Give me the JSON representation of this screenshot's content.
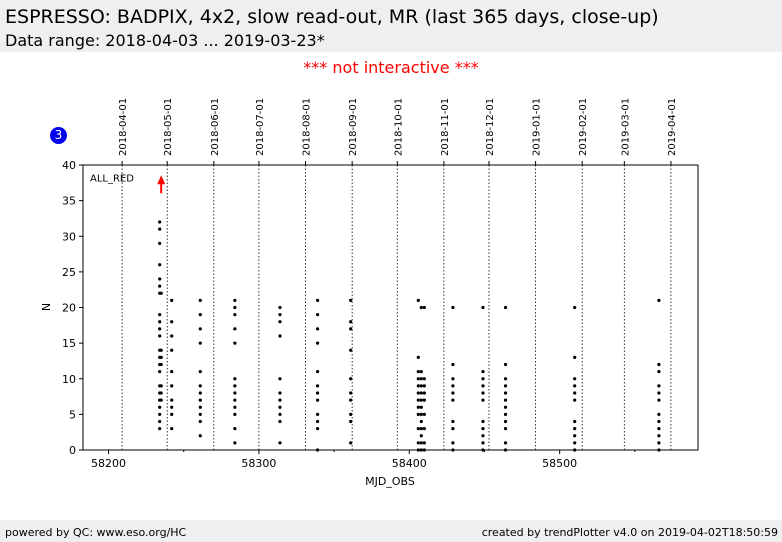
{
  "header": {
    "title": "ESPRESSO: BADPIX, 4x2, slow read-out, MR (last 365 days, close-up)",
    "subtitle": "Data range: 2018-04-03 ... 2019-03-23*"
  },
  "notice": "*** not interactive ***",
  "badge": "3",
  "footer": {
    "left": "powered by QC: www.eso.org/HC",
    "right": "created by trendPlotter v4.0 on 2019-04-02T18:50:59"
  },
  "chart_data": {
    "type": "scatter",
    "xlabel": "MJD_OBS",
    "ylabel": "N",
    "xlim": [
      58183,
      58592
    ],
    "ylim": [
      0,
      40
    ],
    "x_ticks": [
      58200,
      58300,
      58400,
      58500
    ],
    "y_ticks": [
      0,
      5,
      10,
      15,
      20,
      25,
      30,
      35,
      40
    ],
    "date_ticks": [
      {
        "mjd": 58209,
        "label": "2018-04-01"
      },
      {
        "mjd": 58239,
        "label": "2018-05-01"
      },
      {
        "mjd": 58270,
        "label": "2018-06-01"
      },
      {
        "mjd": 58300,
        "label": "2018-07-01"
      },
      {
        "mjd": 58331,
        "label": "2018-08-01"
      },
      {
        "mjd": 58362,
        "label": "2018-09-01"
      },
      {
        "mjd": 58392,
        "label": "2018-10-01"
      },
      {
        "mjd": 58423,
        "label": "2018-11-01"
      },
      {
        "mjd": 58453,
        "label": "2018-12-01"
      },
      {
        "mjd": 58484,
        "label": "2019-01-01"
      },
      {
        "mjd": 58515,
        "label": "2019-02-01"
      },
      {
        "mjd": 58543,
        "label": "2019-03-01"
      },
      {
        "mjd": 58574,
        "label": "2019-04-01"
      }
    ],
    "annotation": {
      "text": "ALL_RED",
      "x": 58235,
      "y": 38,
      "color": "#ff0000"
    },
    "marker_color": "#000000",
    "series": [
      {
        "points": [
          [
            58234,
            3
          ],
          [
            58234,
            4
          ],
          [
            58234,
            5
          ],
          [
            58234,
            6
          ],
          [
            58234,
            7
          ],
          [
            58234,
            8
          ],
          [
            58234,
            9
          ],
          [
            58234,
            11
          ],
          [
            58234,
            12
          ],
          [
            58234,
            13
          ],
          [
            58234,
            14
          ],
          [
            58234,
            16
          ],
          [
            58234,
            17
          ],
          [
            58234,
            18
          ],
          [
            58234,
            19
          ],
          [
            58234,
            22
          ],
          [
            58234,
            23
          ],
          [
            58234,
            24
          ],
          [
            58234,
            26
          ],
          [
            58234,
            29
          ],
          [
            58234,
            31
          ],
          [
            58234,
            32
          ],
          [
            58235,
            7
          ],
          [
            58235,
            8
          ],
          [
            58235,
            9
          ],
          [
            58235,
            12
          ],
          [
            58235,
            13
          ],
          [
            58235,
            14
          ],
          [
            58235,
            22
          ],
          [
            58242,
            3
          ],
          [
            58242,
            5
          ],
          [
            58242,
            6
          ],
          [
            58242,
            7
          ],
          [
            58242,
            9
          ],
          [
            58242,
            11
          ],
          [
            58242,
            14
          ],
          [
            58242,
            16
          ],
          [
            58242,
            18
          ],
          [
            58242,
            21
          ],
          [
            58261,
            2
          ],
          [
            58261,
            4
          ],
          [
            58261,
            5
          ],
          [
            58261,
            6
          ],
          [
            58261,
            7
          ],
          [
            58261,
            8
          ],
          [
            58261,
            9
          ],
          [
            58261,
            11
          ],
          [
            58261,
            15
          ],
          [
            58261,
            17
          ],
          [
            58261,
            19
          ],
          [
            58261,
            21
          ],
          [
            58284,
            1
          ],
          [
            58284,
            3
          ],
          [
            58284,
            5
          ],
          [
            58284,
            6
          ],
          [
            58284,
            7
          ],
          [
            58284,
            8
          ],
          [
            58284,
            9
          ],
          [
            58284,
            10
          ],
          [
            58284,
            15
          ],
          [
            58284,
            17
          ],
          [
            58284,
            19
          ],
          [
            58284,
            20
          ],
          [
            58284,
            21
          ],
          [
            58314,
            1
          ],
          [
            58314,
            4
          ],
          [
            58314,
            5
          ],
          [
            58314,
            6
          ],
          [
            58314,
            7
          ],
          [
            58314,
            8
          ],
          [
            58314,
            10
          ],
          [
            58314,
            16
          ],
          [
            58314,
            18
          ],
          [
            58314,
            19
          ],
          [
            58314,
            20
          ],
          [
            58339,
            0
          ],
          [
            58339,
            3
          ],
          [
            58339,
            4
          ],
          [
            58339,
            5
          ],
          [
            58339,
            7
          ],
          [
            58339,
            8
          ],
          [
            58339,
            9
          ],
          [
            58339,
            11
          ],
          [
            58339,
            15
          ],
          [
            58339,
            17
          ],
          [
            58339,
            19
          ],
          [
            58339,
            21
          ],
          [
            58361,
            1
          ],
          [
            58361,
            4
          ],
          [
            58361,
            5
          ],
          [
            58361,
            7
          ],
          [
            58361,
            8
          ],
          [
            58361,
            10
          ],
          [
            58361,
            14
          ],
          [
            58361,
            17
          ],
          [
            58361,
            18
          ],
          [
            58361,
            21
          ],
          [
            58406,
            0
          ],
          [
            58406,
            1
          ],
          [
            58406,
            3
          ],
          [
            58406,
            5
          ],
          [
            58406,
            6
          ],
          [
            58406,
            7
          ],
          [
            58406,
            8
          ],
          [
            58406,
            9
          ],
          [
            58406,
            10
          ],
          [
            58406,
            11
          ],
          [
            58406,
            13
          ],
          [
            58406,
            21
          ],
          [
            58408,
            0
          ],
          [
            58408,
            1
          ],
          [
            58408,
            2
          ],
          [
            58408,
            3
          ],
          [
            58408,
            4
          ],
          [
            58408,
            5
          ],
          [
            58408,
            6
          ],
          [
            58408,
            7
          ],
          [
            58408,
            8
          ],
          [
            58408,
            9
          ],
          [
            58408,
            10
          ],
          [
            58408,
            11
          ],
          [
            58408,
            20
          ],
          [
            58410,
            0
          ],
          [
            58410,
            1
          ],
          [
            58410,
            3
          ],
          [
            58410,
            5
          ],
          [
            58410,
            7
          ],
          [
            58410,
            8
          ],
          [
            58410,
            9
          ],
          [
            58410,
            10
          ],
          [
            58410,
            20
          ],
          [
            58429,
            0
          ],
          [
            58429,
            1
          ],
          [
            58429,
            3
          ],
          [
            58429,
            4
          ],
          [
            58429,
            7
          ],
          [
            58429,
            8
          ],
          [
            58429,
            9
          ],
          [
            58429,
            10
          ],
          [
            58429,
            12
          ],
          [
            58429,
            20
          ],
          [
            58449,
            0
          ],
          [
            58449,
            1
          ],
          [
            58449,
            2
          ],
          [
            58449,
            3
          ],
          [
            58449,
            4
          ],
          [
            58449,
            7
          ],
          [
            58449,
            8
          ],
          [
            58449,
            9
          ],
          [
            58449,
            10
          ],
          [
            58449,
            11
          ],
          [
            58449,
            20
          ],
          [
            58464,
            0
          ],
          [
            58464,
            1
          ],
          [
            58464,
            3
          ],
          [
            58464,
            4
          ],
          [
            58464,
            5
          ],
          [
            58464,
            6
          ],
          [
            58464,
            7
          ],
          [
            58464,
            8
          ],
          [
            58464,
            9
          ],
          [
            58464,
            10
          ],
          [
            58464,
            12
          ],
          [
            58464,
            20
          ],
          [
            58510,
            0
          ],
          [
            58510,
            1
          ],
          [
            58510,
            2
          ],
          [
            58510,
            3
          ],
          [
            58510,
            4
          ],
          [
            58510,
            7
          ],
          [
            58510,
            8
          ],
          [
            58510,
            9
          ],
          [
            58510,
            10
          ],
          [
            58510,
            13
          ],
          [
            58510,
            20
          ],
          [
            58566,
            0
          ],
          [
            58566,
            1
          ],
          [
            58566,
            2
          ],
          [
            58566,
            3
          ],
          [
            58566,
            4
          ],
          [
            58566,
            5
          ],
          [
            58566,
            7
          ],
          [
            58566,
            8
          ],
          [
            58566,
            9
          ],
          [
            58566,
            11
          ],
          [
            58566,
            12
          ],
          [
            58566,
            21
          ]
        ]
      }
    ]
  }
}
